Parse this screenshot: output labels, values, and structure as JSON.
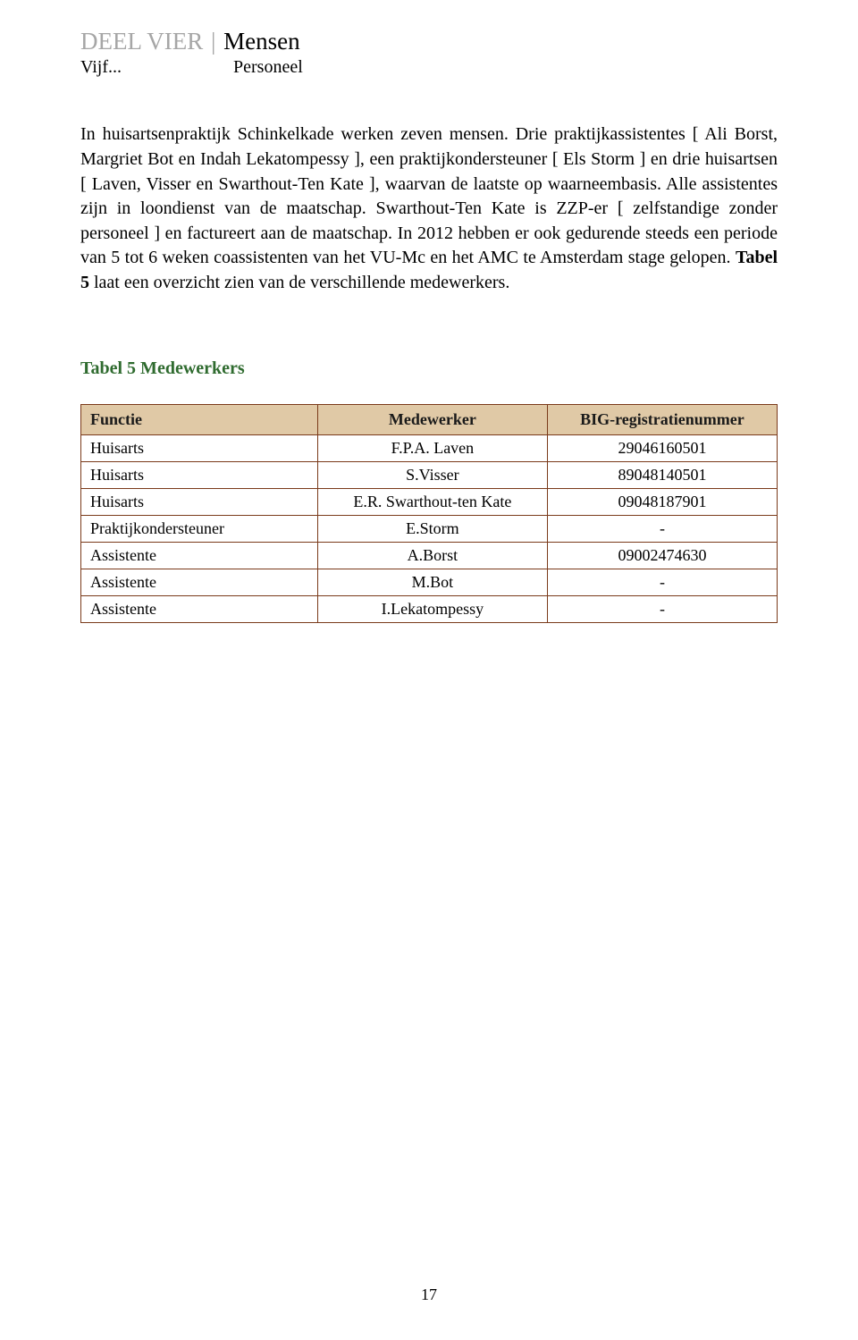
{
  "header": {
    "part": "DEEL VIER",
    "separator": "|",
    "title": "Mensen",
    "sub_left": "Vijf...",
    "sub_right": "Personeel"
  },
  "body": {
    "paragraph": "In huisartsenpraktijk Schinkelkade werken zeven mensen. Drie praktijkassistentes [ Ali Borst, Margriet Bot en Indah Lekatompessy ], een praktijkondersteuner [ Els Storm ] en drie huisartsen [ Laven, Visser en Swarthout-Ten Kate ], waarvan de laatste op waarneembasis. Alle assistentes zijn in loondienst van de maatschap. Swarthout-Ten Kate is ZZP-er [ zelfstandige zonder personeel ] en factureert aan de maatschap. In 2012 hebben er ook gedurende steeds een periode van 5 tot 6 weken coassistenten van het VU-Mc en het AMC te Amsterdam stage gelopen. ",
    "bold_sentence_label": "Tabel 5",
    "bold_sentence_rest": " laat een overzicht zien van de verschillende medewerkers."
  },
  "table": {
    "caption": "Tabel 5 Medewerkers",
    "columns": [
      "Functie",
      "Medewerker",
      "BIG-registratienummer"
    ],
    "rows": [
      [
        "Huisarts",
        "F.P.A. Laven",
        "29046160501"
      ],
      [
        "Huisarts",
        "S.Visser",
        "89048140501"
      ],
      [
        "Huisarts",
        "E.R. Swarthout-ten Kate",
        "09048187901"
      ],
      [
        "Praktijkondersteuner",
        "E.Storm",
        "-"
      ],
      [
        "Assistente",
        "A.Borst",
        "09002474630"
      ],
      [
        "Assistente",
        "M.Bot",
        "-"
      ],
      [
        "Assistente",
        "I.Lekatompessy",
        "-"
      ]
    ],
    "header_bg": "#e0c9a6",
    "border_color": "#7a3a1a",
    "caption_color": "#2f6b2f"
  },
  "page_number": "17",
  "colors": {
    "header_part": "#a6a6a6",
    "text": "#000000",
    "background": "#ffffff"
  }
}
